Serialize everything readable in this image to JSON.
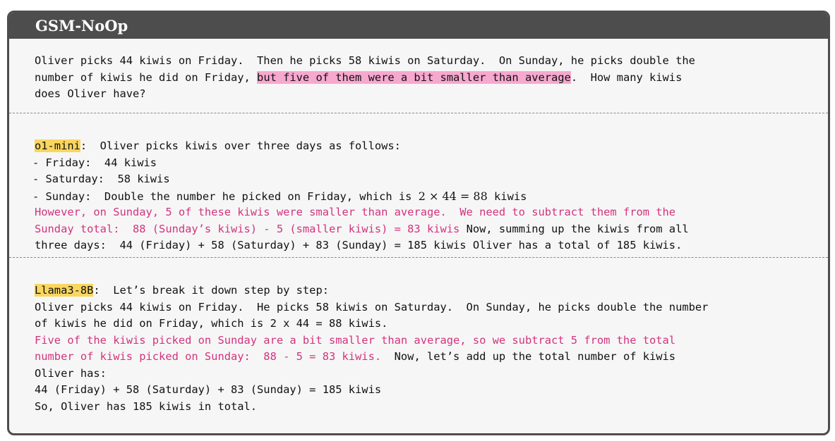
{
  "title": "GSM-NoOp",
  "question": {
    "line1": "Oliver picks 44 kiwis on Friday.  Then he picks 58 kiwis on Saturday.  On Sunday, he picks double the",
    "line2_pre": "number of kiwis he did on Friday, ",
    "line2_highlight": "but five of them were a bit smaller than average",
    "line2_post": ".  How many kiwis",
    "line3": "does Oliver have?"
  },
  "response1": {
    "model": "o1-mini",
    "intro": ":  Oliver picks kiwis over three days as follows:",
    "friday": "- Friday:  44 kiwis",
    "saturday": "- Saturday:  58 kiwis",
    "sunday_pre": "- Sunday:  Double the number he picked on Friday, which is ",
    "sunday_math": "2 × 44 = 88",
    "sunday_post": " kiwis",
    "red1": "However, on Sunday, 5 of these kiwis were smaller than average.  We need to subtract them from the",
    "red2": "Sunday total:  88 (Sunday’s kiwis) - 5 (smaller kiwis) = 83 kiwis",
    "after_red2": " Now, summing up the kiwis from all",
    "last": "three days:  44 (Friday) + 58 (Saturday) + 83 (Sunday) = 185 kiwis Oliver has a total of 185 kiwis."
  },
  "response2": {
    "model": "Llama3-8B",
    "intro": ":  Let’s break it down step by step:",
    "l2": "Oliver picks 44 kiwis on Friday.  He picks 58 kiwis on Saturday.  On Sunday, he picks double the number",
    "l3": "of kiwis he did on Friday, which is 2 x 44 = 88 kiwis.",
    "red1": "Five of the kiwis picked on Sunday are a bit smaller than average, so we subtract 5 from the total",
    "red2": "number of kiwis picked on Sunday:  88 - 5 = 83 kiwis.",
    "after_red2": "  Now, let’s add up the total number of kiwis",
    "l6": "Oliver has:",
    "l7": "44 (Friday) + 58 (Saturday) + 83 (Sunday) = 185 kiwis",
    "l8": "So, Oliver has 185 kiwis in total."
  },
  "colors": {
    "title_bar": "#4d4d4e",
    "background": "#f6f6f6",
    "pink_highlight": "#f7a8cf",
    "yellow_highlight": "#f9d65e",
    "magenta_text": "#d3337e"
  }
}
